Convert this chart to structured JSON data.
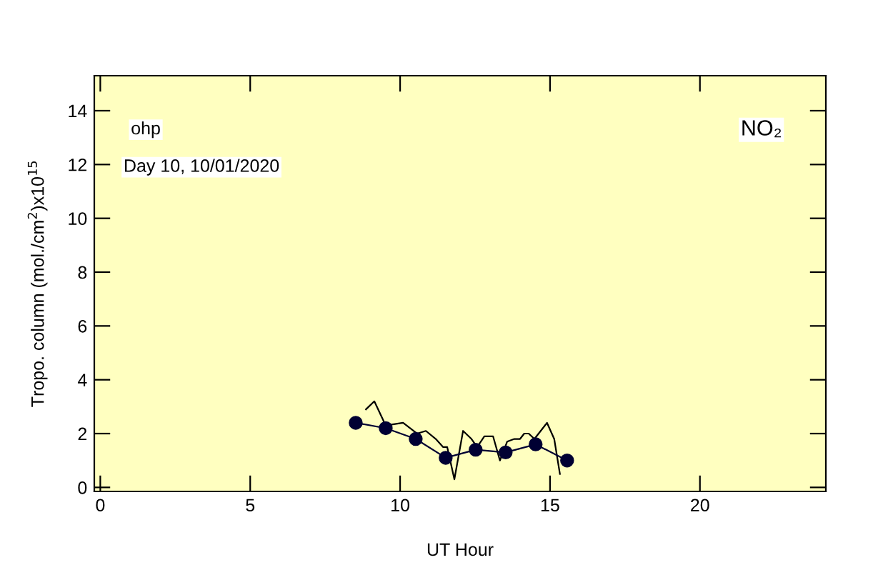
{
  "chart_data": {
    "type": "line",
    "xlabel": "UT Hour",
    "ylabel": "Tropo. column (mol./cm$^{2}$)x10$^{15}$",
    "annotations": [
      "ohp",
      "Day 10, 10/01/2020",
      "NO₂"
    ],
    "xlim": [
      -0.2,
      24.2
    ],
    "ylim": [
      -0.15,
      15.3
    ],
    "xticks": [
      0,
      5,
      10,
      15,
      20
    ],
    "yticks": [
      0,
      2,
      4,
      6,
      8,
      10,
      12,
      14
    ],
    "grid": false,
    "legend": false,
    "series": [
      {
        "color": "#000000",
        "marker": "none",
        "x": [
          8.86,
          9.14,
          9.52,
          10.1,
          10.57,
          10.86,
          11.19,
          11.43,
          11.57,
          11.81,
          12.1,
          12.38,
          12.57,
          12.81,
          13.1,
          13.33,
          13.57,
          13.81,
          14.0,
          14.14,
          14.29,
          14.48,
          14.9,
          15.14,
          15.33
        ],
        "values": [
          2.9,
          3.2,
          2.3,
          2.4,
          2.0,
          2.1,
          1.8,
          1.5,
          1.5,
          0.3,
          2.1,
          1.8,
          1.5,
          1.9,
          1.9,
          1.0,
          1.7,
          1.8,
          1.8,
          2.0,
          2.0,
          1.8,
          2.4,
          1.8,
          0.5
        ]
      },
      {
        "color": "#000033",
        "marker": "circle",
        "x": [
          8.52,
          9.52,
          10.52,
          11.52,
          12.52,
          13.52,
          14.52,
          15.57
        ],
        "values": [
          2.4,
          2.2,
          1.8,
          1.1,
          1.4,
          1.3,
          1.6,
          1.0
        ]
      }
    ]
  }
}
